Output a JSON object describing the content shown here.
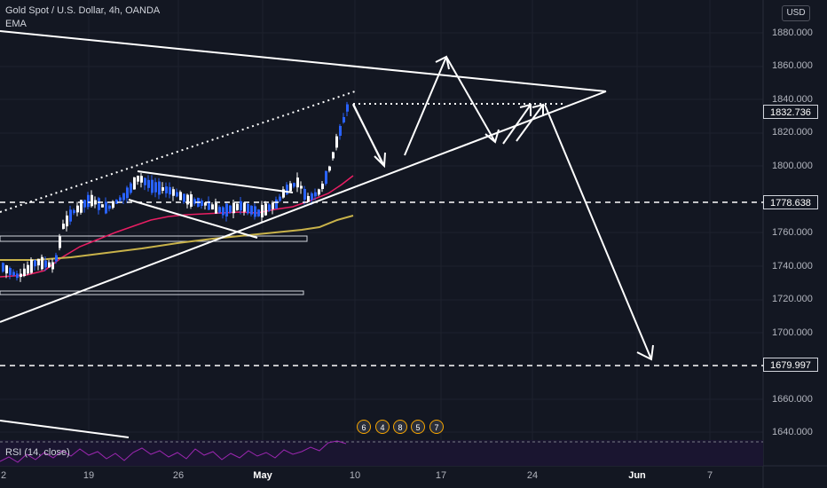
{
  "header": {
    "symbol_line": "Gold Spot / U.S. Dollar, 4h, OANDA",
    "indicator": "EMA"
  },
  "currency_button": "USD",
  "price_axis": [
    "1880.000",
    "1860.000",
    "1840.000",
    "1820.000",
    "1800.000",
    "1760.000",
    "1740.000",
    "1720.000",
    "1700.000",
    "1660.000",
    "1640.000"
  ],
  "price_tags": [
    "1832.736",
    "1778.638",
    "1679.997"
  ],
  "time_axis": [
    {
      "label": "2",
      "bold": false
    },
    {
      "label": "19",
      "bold": false
    },
    {
      "label": "26",
      "bold": false
    },
    {
      "label": "May",
      "bold": true
    },
    {
      "label": "10",
      "bold": false
    },
    {
      "label": "17",
      "bold": false
    },
    {
      "label": "24",
      "bold": false
    },
    {
      "label": "Jun",
      "bold": true
    },
    {
      "label": "7",
      "bold": false
    }
  ],
  "rsi_label": "RSI (14, close)",
  "events": [
    "6",
    "4",
    "8",
    "5",
    "7"
  ],
  "colors": {
    "background": "#131722",
    "candle_up": "#2962ff",
    "candle_down": "#ffffff",
    "ema_fast": "#e91e63",
    "ema_slow": "#c8b24a",
    "rsi": "#9c27b0",
    "drawing": "#ffffff"
  }
}
